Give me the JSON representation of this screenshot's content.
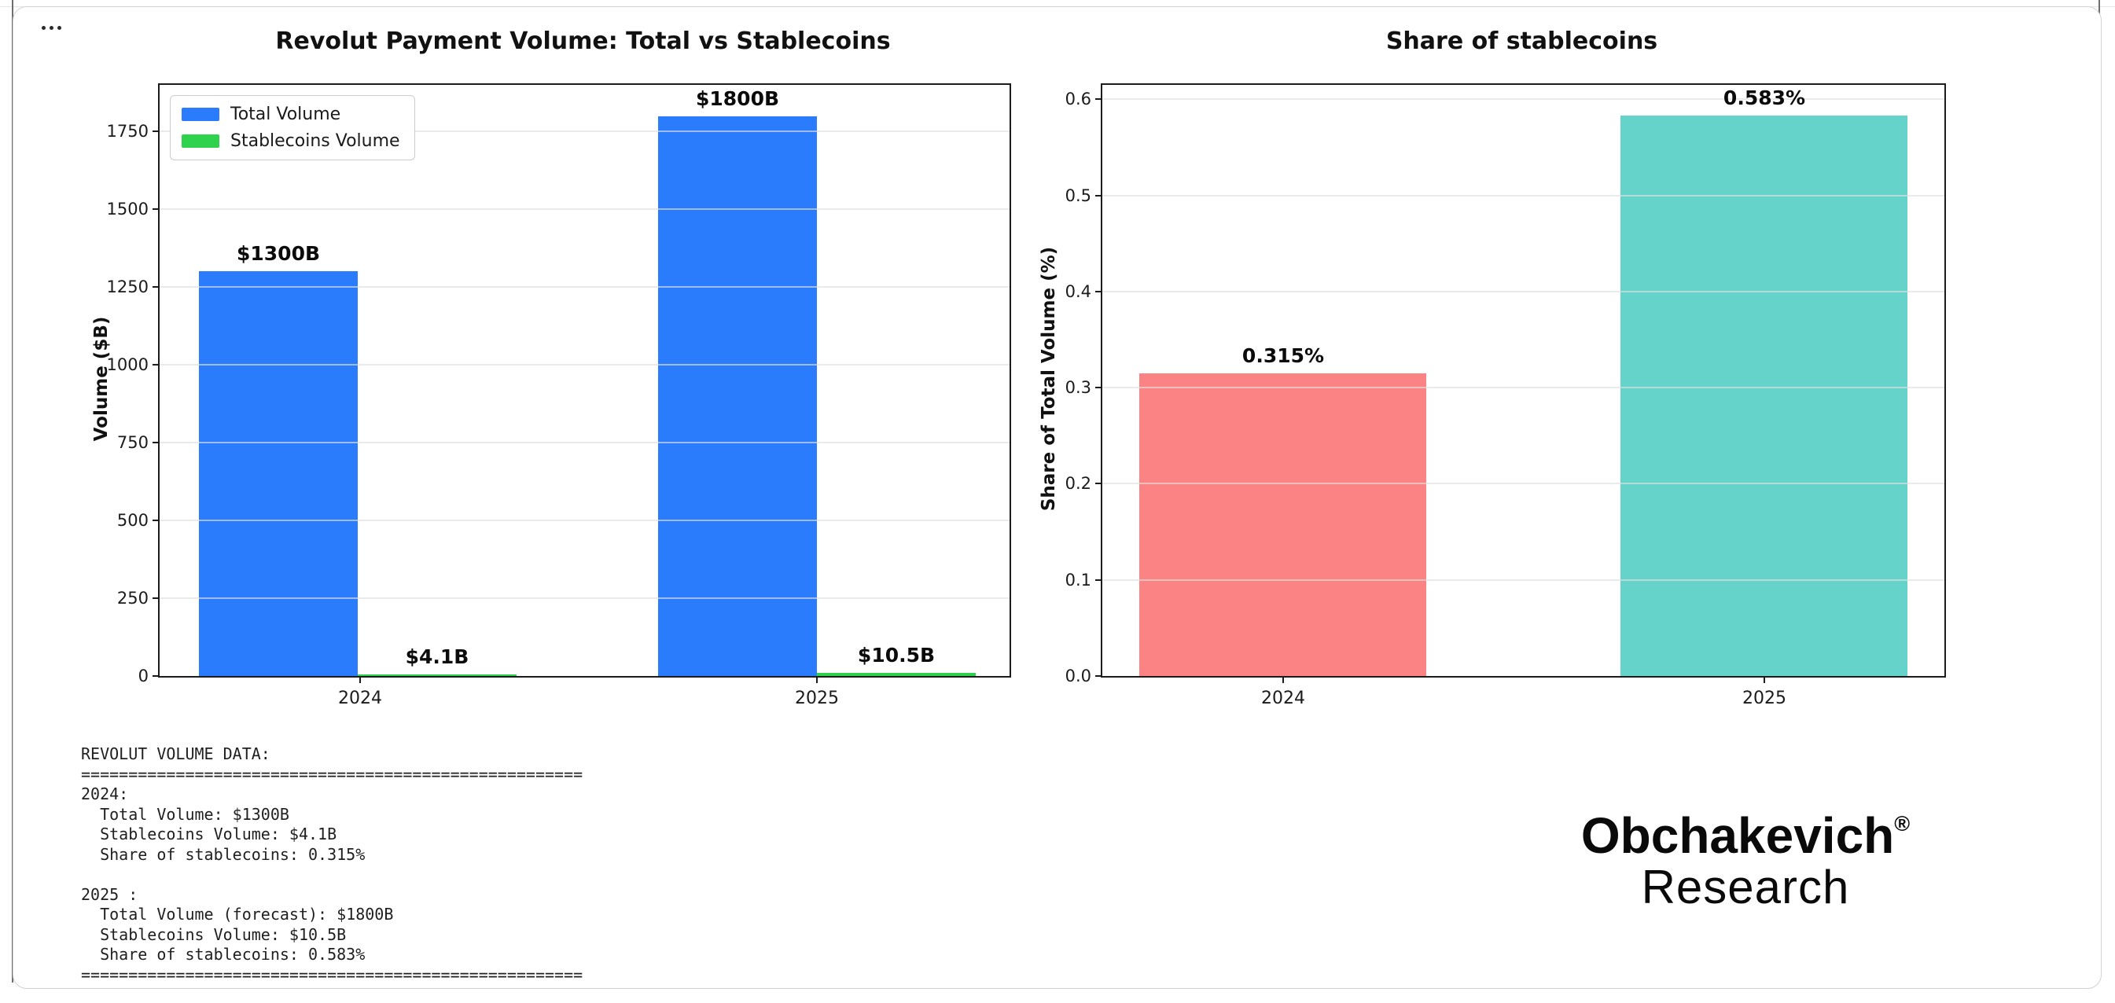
{
  "icons": {
    "more_menu": "more-horizontal-icon"
  },
  "data_block": {
    "lines": [
      "REVOLUT VOLUME DATA:",
      "=====================================================",
      "2024:",
      "  Total Volume: $1300B",
      "  Stablecoins Volume: $4.1B",
      "  Share of stablecoins: 0.315%",
      "",
      "2025 :",
      "  Total Volume (forecast): $1800B",
      "  Stablecoins Volume: $10.5B",
      "  Share of stablecoins: 0.583%",
      "====================================================="
    ]
  },
  "logo": {
    "name": "Obchakevich",
    "reg": "®",
    "sub": "Research"
  },
  "chart_data": [
    {
      "type": "bar",
      "title": "Revolut Payment Volume: Total vs Stablecoins",
      "ylabel": "Volume ($B)",
      "xlabel": "",
      "categories": [
        "2024",
        "2025"
      ],
      "series": [
        {
          "name": "Total Volume",
          "color": "#2b7cfc",
          "values": [
            1300,
            1800
          ],
          "bar_labels": [
            "$1300B",
            "$1800B"
          ]
        },
        {
          "name": "Stablecoins Volume",
          "color": "#2fd24c",
          "values": [
            4.1,
            10.5
          ],
          "bar_labels": [
            "$4.1B",
            "$10.5B"
          ]
        }
      ],
      "ylim": [
        0,
        1900
      ],
      "yticks": [
        "0",
        "250",
        "500",
        "750",
        "1000",
        "1250",
        "1500",
        "1750"
      ],
      "grid": true,
      "legend_position": "upper left"
    },
    {
      "type": "bar",
      "title": "Share of stablecoins",
      "ylabel": "Share of Total Volume (%)",
      "xlabel": "",
      "categories": [
        "2024",
        "2025"
      ],
      "values": [
        0.315,
        0.583
      ],
      "colors": [
        "#fc8383",
        "#65d3c9"
      ],
      "bar_labels": [
        "0.315%",
        "0.583%"
      ],
      "ylim": [
        0,
        0.615
      ],
      "yticks": [
        "0.0",
        "0.1",
        "0.2",
        "0.3",
        "0.4",
        "0.5",
        "0.6"
      ],
      "grid": true,
      "legend_position": "none"
    }
  ]
}
